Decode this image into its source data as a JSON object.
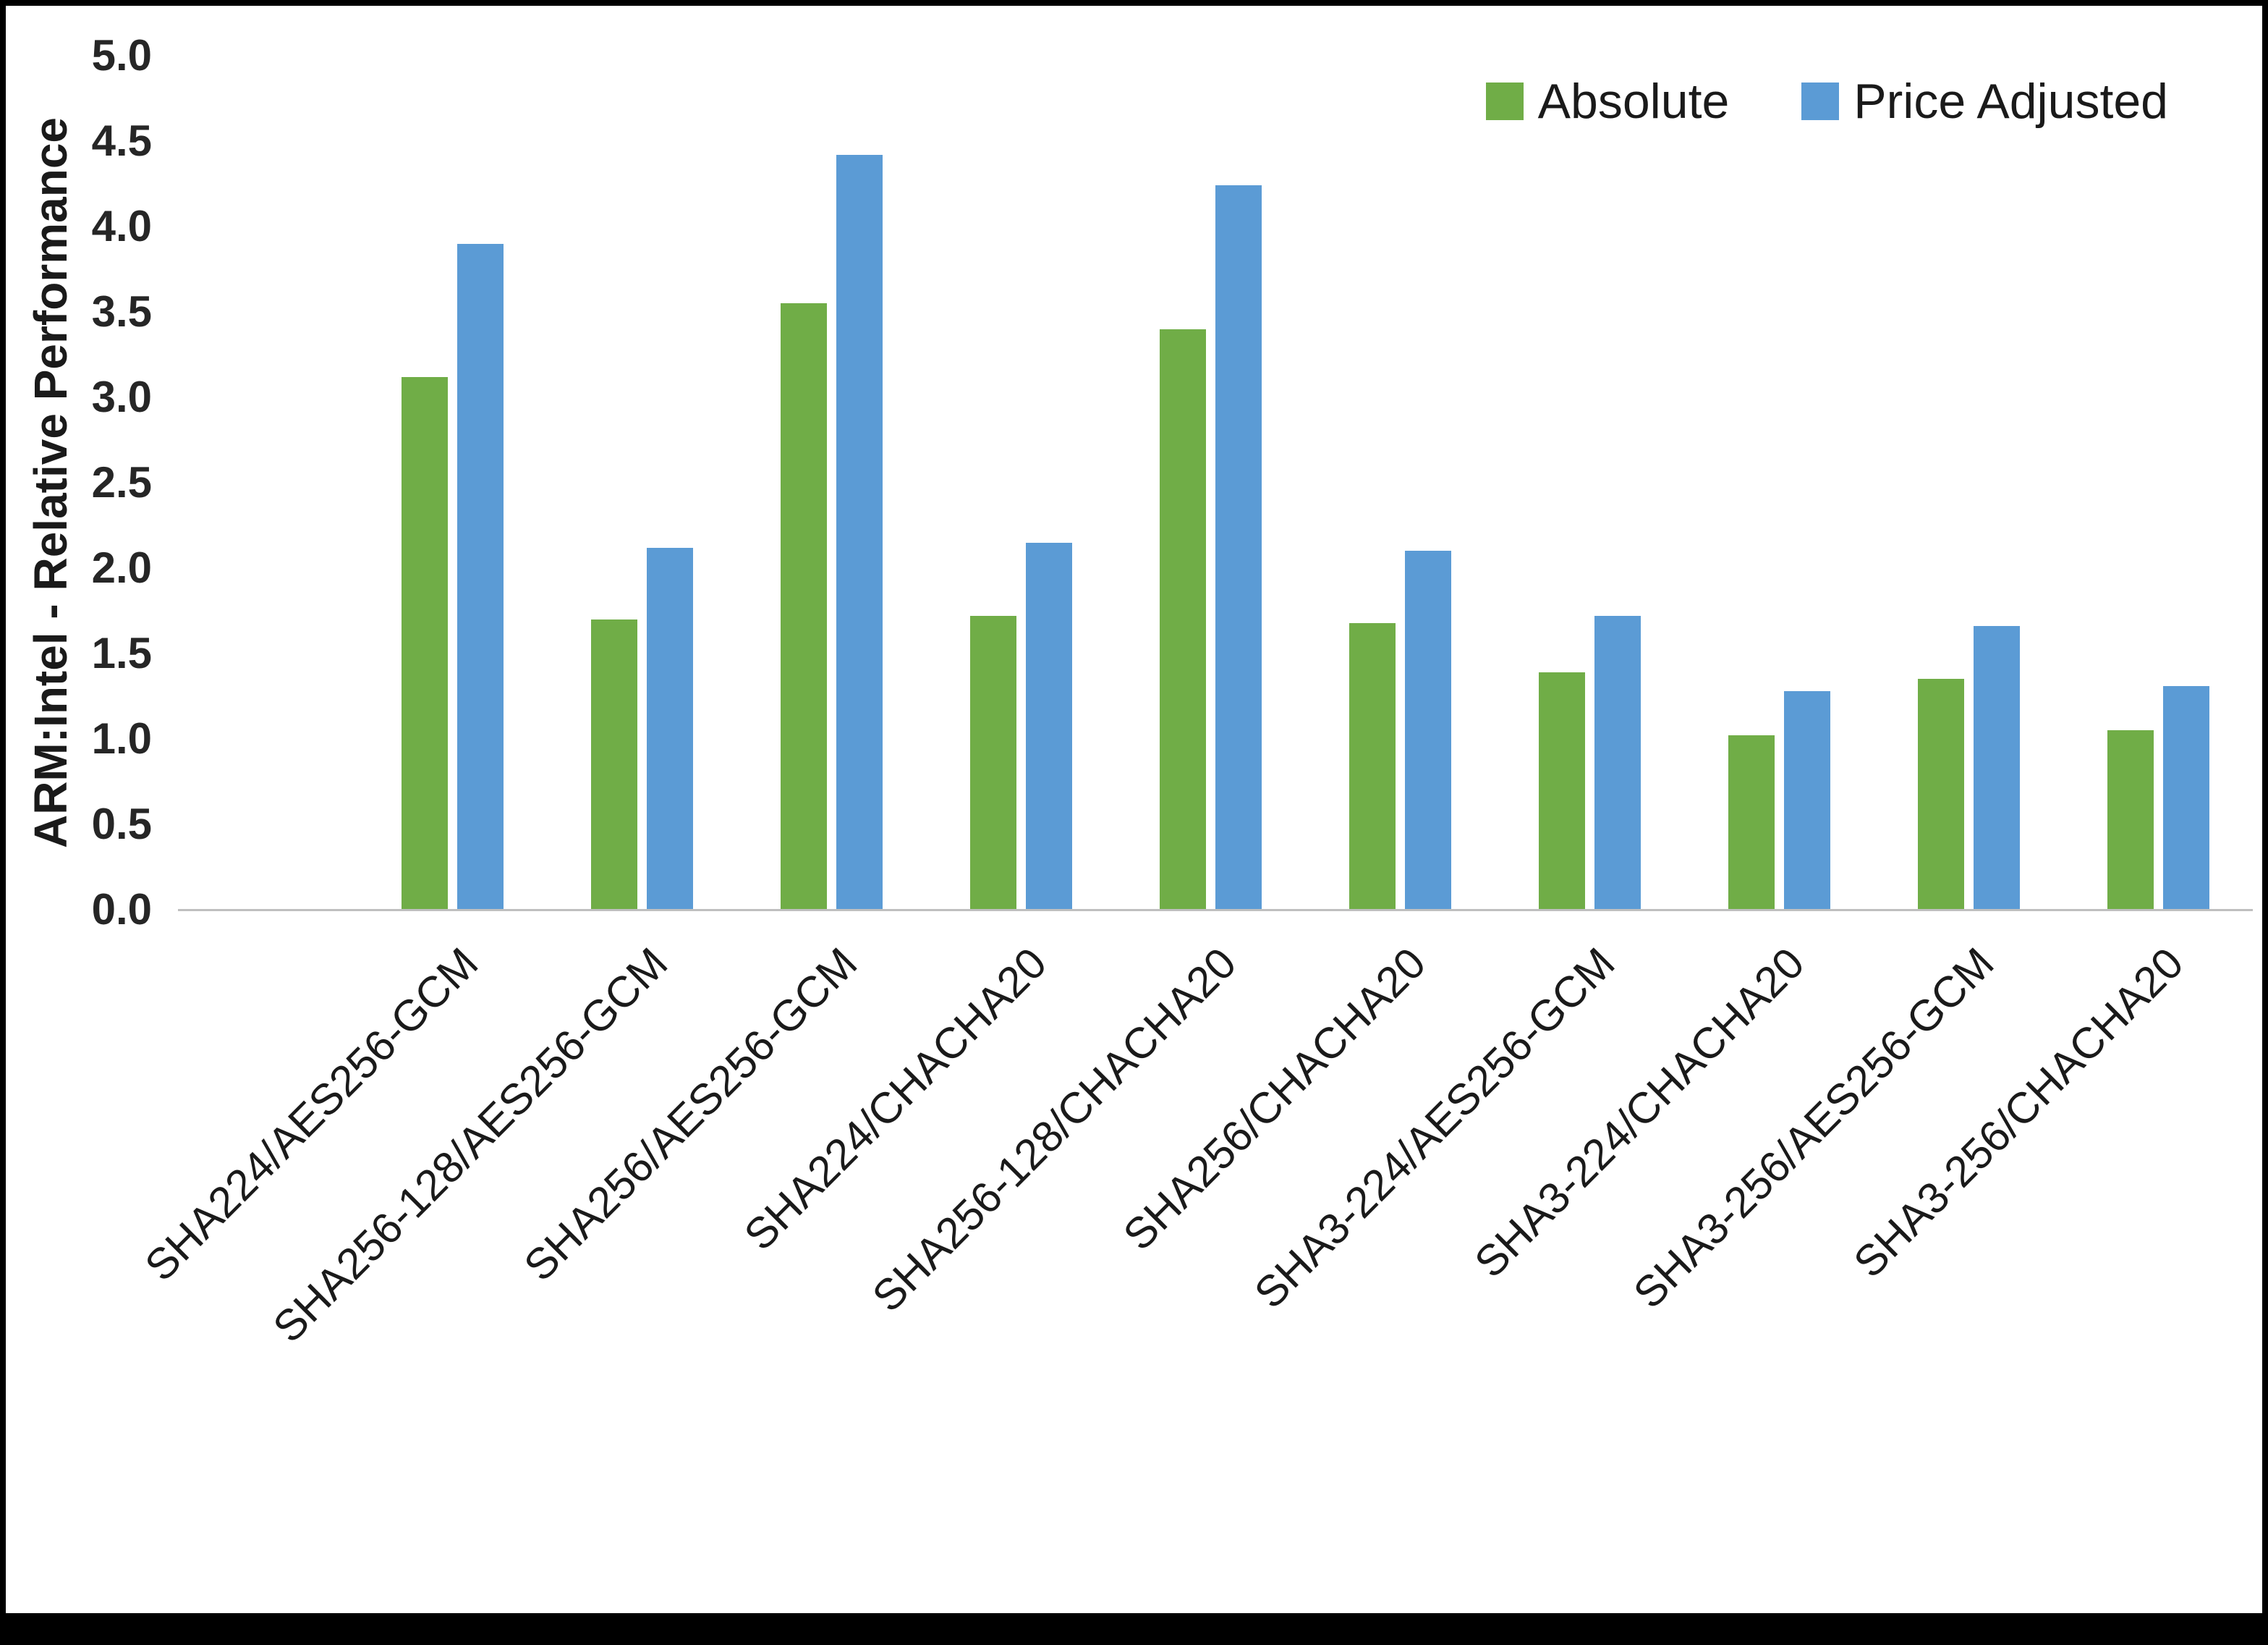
{
  "chart_data": {
    "type": "bar",
    "title": "",
    "xlabel": "",
    "ylabel": "ARM:Intel - Relative Performance",
    "ylim": [
      0,
      5
    ],
    "ytick_step": 0.5,
    "grid": false,
    "legend_position": "top-right",
    "categories": [
      "SHA224/AES256-GCM",
      "SHA256-128/AES256-GCM",
      "SHA256/AES256-GCM",
      "SHA224/CHACHA20",
      "SHA256-128/CHACHA20",
      "SHA256/CHACHA20",
      "SHA3-224/AES256-GCM",
      "SHA3-224/CHACHA20",
      "SHA3-256/AES256-GCM",
      "SHA3-256/CHACHA20"
    ],
    "series": [
      {
        "name": "Absolute",
        "color": "#70AD47",
        "values": [
          3.12,
          1.7,
          3.55,
          1.72,
          3.4,
          1.68,
          1.39,
          1.02,
          1.35,
          1.05
        ]
      },
      {
        "name": "Price Adjusted",
        "color": "#5B9BD5",
        "values": [
          3.9,
          2.12,
          4.42,
          2.15,
          4.24,
          2.1,
          1.72,
          1.28,
          1.66,
          1.31
        ]
      }
    ],
    "axis_line_color": "#bfbfbf"
  }
}
